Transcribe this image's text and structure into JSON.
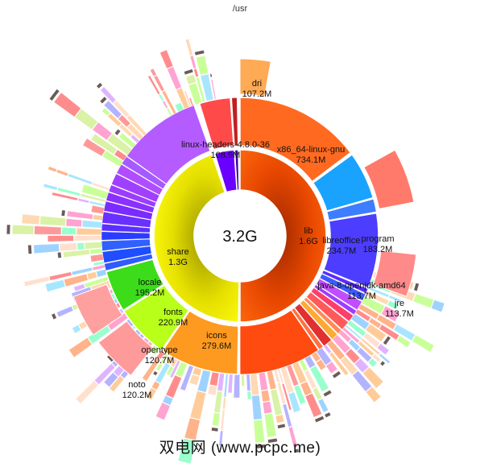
{
  "path_title": "/usr",
  "center_total": "3.2G",
  "watermark": "双电网 (www.pcpc.me)",
  "colors": {
    "lib": "#ff5a00",
    "share": "#f2ee00",
    "separator": "#ffffff"
  },
  "labeled_segments": [
    {
      "id": "lib",
      "name": "lib",
      "size": "1.6G"
    },
    {
      "id": "share",
      "name": "share",
      "size": "1.3G"
    },
    {
      "id": "x86",
      "name": "x86_64-linux-gnu",
      "size": "734.1M"
    },
    {
      "id": "libreoffice",
      "name": "libreoffice",
      "size": "234.7M"
    },
    {
      "id": "java",
      "name": "java-8-openjdk-amd64",
      "size": "113.7M"
    },
    {
      "id": "linuxheaders",
      "name": "linux-headers-4.8.0-36",
      "size": "108.9M"
    },
    {
      "id": "icons",
      "name": "icons",
      "size": "279.6M"
    },
    {
      "id": "fonts",
      "name": "fonts",
      "size": "220.9M"
    },
    {
      "id": "locale",
      "name": "locale",
      "size": "195.2M"
    },
    {
      "id": "dri",
      "name": "dri",
      "size": "107.2M"
    },
    {
      "id": "program",
      "name": "program",
      "size": "183.2M"
    },
    {
      "id": "jre",
      "name": "jre",
      "size": "113.7M"
    },
    {
      "id": "opentype",
      "name": "opentype",
      "size": "120.7M"
    },
    {
      "id": "noto",
      "name": "noto",
      "size": "120.2M"
    }
  ]
}
